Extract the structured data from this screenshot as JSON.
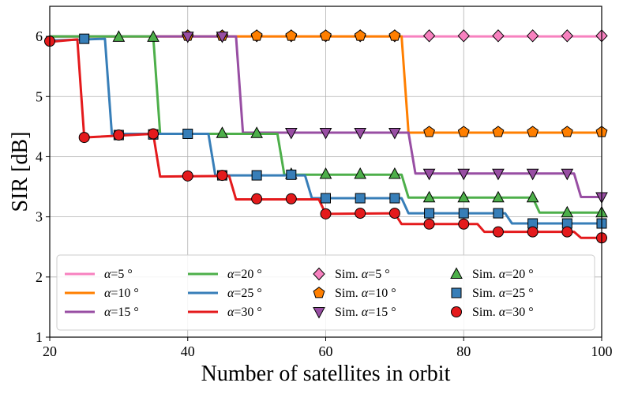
{
  "chart_data": {
    "type": "line",
    "xlabel": "Number of satellites in orbit",
    "ylabel": "SIR [dB]",
    "xlim": [
      20,
      100
    ],
    "ylim": [
      1,
      6.5
    ],
    "xticks": [
      "20",
      "40",
      "60",
      "80",
      "100"
    ],
    "yticks": [
      "1",
      "2",
      "3",
      "4",
      "5",
      "6"
    ],
    "grid": true,
    "legend_placement": "bottom",
    "series": [
      {
        "name": "α=5 °",
        "kind": "line",
        "color": "#f781bf",
        "x": [
          20,
          100
        ],
        "y": [
          6.0,
          6.0
        ]
      },
      {
        "name": "α=10 °",
        "kind": "line",
        "color": "#ff7f00",
        "x": [
          20,
          71,
          72,
          100
        ],
        "y": [
          6.0,
          6.0,
          4.4,
          4.4
        ]
      },
      {
        "name": "α=15 °",
        "kind": "line",
        "color": "#984ea3",
        "x": [
          20,
          47,
          48,
          72,
          73,
          96,
          97,
          100
        ],
        "y": [
          6.0,
          6.0,
          4.4,
          4.4,
          3.72,
          3.72,
          3.33,
          3.33
        ]
      },
      {
        "name": "α=20 °",
        "kind": "line",
        "color": "#4daf4a",
        "x": [
          20,
          35,
          36,
          53,
          54,
          71,
          72,
          90,
          91,
          100
        ],
        "y": [
          6.0,
          6.0,
          4.38,
          4.38,
          3.7,
          3.7,
          3.32,
          3.32,
          3.07,
          3.07
        ]
      },
      {
        "name": "α=25 °",
        "kind": "line",
        "color": "#377eb8",
        "x": [
          20,
          28,
          29,
          43,
          44,
          57,
          58,
          71,
          72,
          86,
          87,
          100
        ],
        "y": [
          5.93,
          5.96,
          4.38,
          4.38,
          3.69,
          3.69,
          3.31,
          3.31,
          3.06,
          3.06,
          2.89,
          2.89
        ]
      },
      {
        "name": "α=30 °",
        "kind": "line",
        "color": "#e41a1c",
        "x": [
          20,
          24,
          25,
          35,
          36,
          46,
          47,
          59,
          60,
          70,
          71,
          82,
          83,
          96,
          97,
          100
        ],
        "y": [
          5.91,
          5.95,
          4.32,
          4.38,
          3.67,
          3.68,
          3.29,
          3.29,
          3.05,
          3.06,
          2.88,
          2.88,
          2.75,
          2.75,
          2.65,
          2.65
        ]
      },
      {
        "name": "Sim. α=5 °",
        "kind": "marker",
        "marker": "diamond",
        "color": "#f781bf",
        "x": [
          40,
          45,
          50,
          55,
          60,
          65,
          70,
          75,
          80,
          85,
          90,
          95,
          100
        ],
        "y": [
          6.01,
          6.01,
          6.01,
          6.01,
          6.01,
          6.01,
          6.01,
          6.01,
          6.01,
          6.01,
          6.01,
          6.01,
          6.01
        ]
      },
      {
        "name": "Sim. α=10 °",
        "kind": "marker",
        "marker": "pentagon",
        "color": "#ff7f00",
        "x": [
          40,
          45,
          50,
          55,
          60,
          65,
          70,
          75,
          80,
          85,
          90,
          95,
          100
        ],
        "y": [
          6.01,
          6.01,
          6.01,
          6.01,
          6.01,
          6.01,
          6.01,
          4.41,
          4.41,
          4.41,
          4.41,
          4.41,
          4.41
        ]
      },
      {
        "name": "Sim. α=15 °",
        "kind": "marker",
        "marker": "triangle-down",
        "color": "#984ea3",
        "x": [
          40,
          45,
          55,
          60,
          65,
          70,
          75,
          80,
          85,
          90,
          95,
          100
        ],
        "y": [
          6.0,
          6.0,
          4.4,
          4.4,
          4.4,
          4.4,
          3.72,
          3.72,
          3.72,
          3.72,
          3.72,
          3.33
        ]
      },
      {
        "name": "Sim. α=20 °",
        "kind": "marker",
        "marker": "triangle-up",
        "color": "#4daf4a",
        "x": [
          30,
          35,
          45,
          50,
          55,
          60,
          65,
          70,
          75,
          80,
          85,
          90,
          95,
          100
        ],
        "y": [
          5.99,
          5.99,
          4.39,
          4.39,
          3.71,
          3.71,
          3.71,
          3.71,
          3.32,
          3.32,
          3.32,
          3.32,
          3.07,
          3.07
        ]
      },
      {
        "name": "Sim. α=25 °",
        "kind": "marker",
        "marker": "square",
        "color": "#377eb8",
        "x": [
          25,
          30,
          35,
          40,
          45,
          50,
          55,
          60,
          65,
          70,
          75,
          80,
          85,
          90,
          95,
          100
        ],
        "y": [
          5.96,
          4.36,
          4.37,
          4.38,
          3.69,
          3.69,
          3.7,
          3.31,
          3.31,
          3.31,
          3.06,
          3.06,
          3.06,
          2.89,
          2.89,
          2.89
        ]
      },
      {
        "name": "Sim. α=30 °",
        "kind": "marker",
        "marker": "circle",
        "color": "#e41a1c",
        "x": [
          20,
          25,
          30,
          35,
          40,
          45,
          50,
          55,
          60,
          65,
          70,
          75,
          80,
          85,
          90,
          95,
          100
        ],
        "y": [
          5.92,
          4.32,
          4.36,
          4.38,
          3.68,
          3.69,
          3.3,
          3.3,
          3.05,
          3.06,
          3.06,
          2.88,
          2.88,
          2.75,
          2.75,
          2.75,
          2.65
        ]
      }
    ]
  }
}
